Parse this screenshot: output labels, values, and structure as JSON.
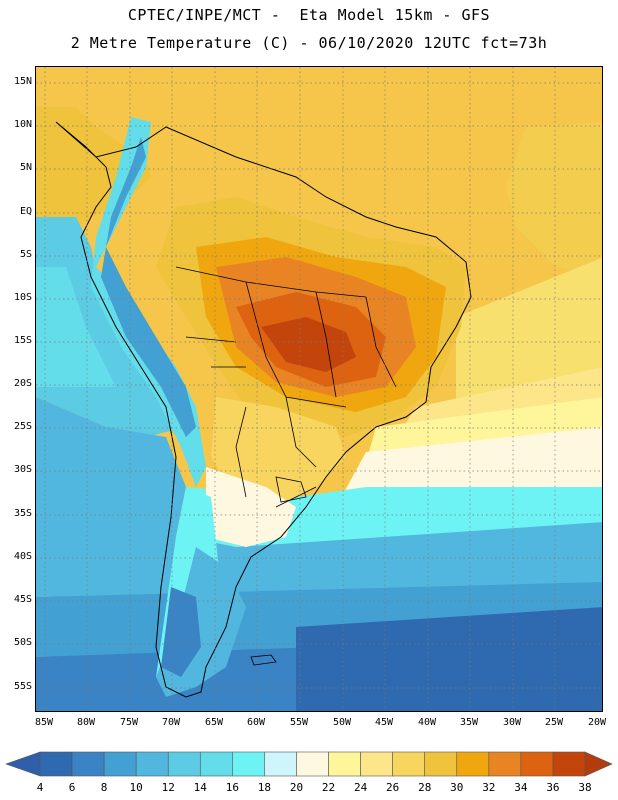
{
  "header": {
    "title_line1": "CPTEC/INPE/MCT -  Eta Model 15km - GFS",
    "title_line2": "2 Metre Temperature (C) - 06/10/2020 12UTC fct=73h"
  },
  "map": {
    "lat_labels": [
      "15N",
      "10N",
      "5N",
      "EQ",
      "5S",
      "10S",
      "15S",
      "20S",
      "25S",
      "30S",
      "35S",
      "40S",
      "45S",
      "50S",
      "55S"
    ],
    "lon_labels": [
      "85W",
      "80W",
      "75W",
      "70W",
      "65W",
      "60W",
      "55W",
      "50W",
      "45W",
      "40W",
      "35W",
      "30W",
      "25W",
      "20W"
    ],
    "grid": "dotted"
  },
  "colorbar": {
    "labels": [
      "4",
      "6",
      "8",
      "10",
      "12",
      "14",
      "16",
      "18",
      "20",
      "22",
      "24",
      "26",
      "28",
      "30",
      "32",
      "34",
      "36",
      "38"
    ],
    "colors": [
      "#2f69b0",
      "#3a83c4",
      "#43a0d2",
      "#52b7df",
      "#5ccbe4",
      "#63dde9",
      "#6ef3f5",
      "#cdf5fb",
      "#fff8e0",
      "#fff59a",
      "#fde58a",
      "#f7d55f",
      "#efc33c",
      "#f0a70f",
      "#e88423",
      "#dd6311",
      "#c4450b"
    ],
    "under_color": "#2f5faa",
    "over_color": "#b23c0b"
  }
}
